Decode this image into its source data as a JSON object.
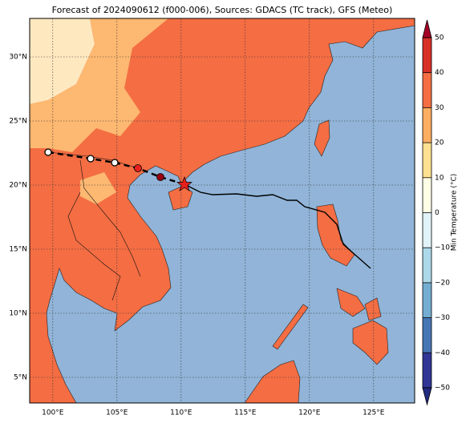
{
  "map": {
    "title": "Forecast of 2024090612 (f000-006), Sources: GDACS (TC track), GFS (Meteo)",
    "lonlim": [
      98.2,
      128.2
    ],
    "latlim": [
      3,
      33
    ],
    "lonticks": [
      {
        "value": 100,
        "label": "100°E"
      },
      {
        "value": 105,
        "label": "105°E"
      },
      {
        "value": 110,
        "label": "110°E"
      },
      {
        "value": 115,
        "label": "115°E"
      },
      {
        "value": 120,
        "label": "120°E"
      },
      {
        "value": 125,
        "label": "125°E"
      }
    ],
    "latticks": [
      {
        "value": 5,
        "label": "5°N"
      },
      {
        "value": 10,
        "label": "10°N"
      },
      {
        "value": 15,
        "label": "15°N"
      },
      {
        "value": 20,
        "label": "20°N"
      },
      {
        "value": 25,
        "label": "25°N"
      },
      {
        "value": 30,
        "label": "30°N"
      }
    ],
    "colorbar": {
      "label": "Min Temperature (°C)",
      "ticks": [
        {
          "value": -50,
          "label": "−50"
        },
        {
          "value": -40,
          "label": "−40"
        },
        {
          "value": -30,
          "label": "−30"
        },
        {
          "value": -20,
          "label": "−20"
        },
        {
          "value": -10,
          "label": "−10"
        },
        0,
        10,
        20,
        30,
        40,
        50
      ],
      "colors": [
        "#313695",
        "#4575b4",
        "#74add1",
        "#abd9e9",
        "#e0f3f8",
        "#fefee6",
        "#fee090",
        "#fdae61",
        "#f46d43",
        "#d73027"
      ],
      "under": "#232a80",
      "over": "#a50026"
    }
  }
}
